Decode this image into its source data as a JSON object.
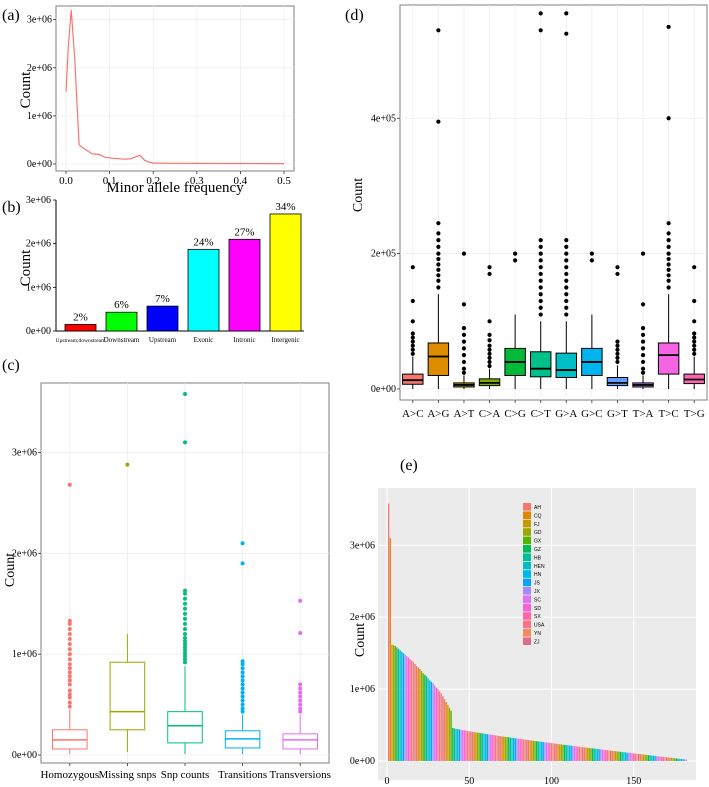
{
  "panel_labels": {
    "a": "(a)",
    "b": "(b)",
    "c": "(c)",
    "d": "(d)",
    "e": "(e)"
  },
  "chart_data": [
    {
      "id": "a",
      "type": "line",
      "xlabel": "Minor allele frequency",
      "ylabel": "Count",
      "xlim": [
        0,
        0.5
      ],
      "ylim": [
        0,
        3200000
      ],
      "xticks": [
        "0.0",
        "0.1",
        "0.2",
        "0.3",
        "0.4",
        "0.5"
      ],
      "yticks": [
        "0e+00",
        "1e+06",
        "2e+06",
        "3e+06"
      ],
      "x": [
        0.0,
        0.005,
        0.012,
        0.02,
        0.03,
        0.045,
        0.06,
        0.075,
        0.09,
        0.105,
        0.12,
        0.135,
        0.15,
        0.16,
        0.17,
        0.18,
        0.19,
        0.2,
        0.25,
        0.3,
        0.35,
        0.4,
        0.45,
        0.5
      ],
      "values": [
        1500000,
        2400000,
        3200000,
        2200000,
        400000,
        300000,
        210000,
        200000,
        140000,
        120000,
        110000,
        100000,
        110000,
        150000,
        180000,
        80000,
        40000,
        20000,
        15000,
        12000,
        10000,
        10000,
        8000,
        8000
      ],
      "color": "#f8766d"
    },
    {
      "id": "b",
      "type": "bar",
      "ylabel": "Count",
      "ylim": [
        0,
        3000000
      ],
      "yticks": [
        "0e+00",
        "1e+06",
        "2e+06",
        "3e+06"
      ],
      "categories": [
        "Upstream;downstream",
        "Downstream",
        "Upstream",
        "Exonic",
        "Intronic",
        "Intergenic"
      ],
      "values": [
        150000,
        430000,
        570000,
        1870000,
        2100000,
        2680000
      ],
      "labels": [
        "2%",
        "6%",
        "7%",
        "24%",
        "27%",
        "34%"
      ],
      "colors": [
        "#ff0000",
        "#00ff00",
        "#0000ff",
        "#00ffff",
        "#ff00ff",
        "#ffff00"
      ]
    },
    {
      "id": "c",
      "type": "box",
      "ylabel": "Count",
      "ylim": [
        0,
        3600000
      ],
      "yticks": [
        "0e+00",
        "1e+06",
        "2e+06",
        "3e+06"
      ],
      "categories": [
        "Homozygous",
        "Missing snps",
        "Snp counts",
        "Transitions",
        "Transversions"
      ],
      "colors": [
        "#f8766d",
        "#a3a500",
        "#00bf7d",
        "#00b0f6",
        "#e76bf3"
      ],
      "boxes": [
        {
          "min": 10000,
          "q1": 60000,
          "median": 150000,
          "q3": 250000,
          "max": 450000,
          "outliers": [
            480000,
            520000,
            570000,
            600000,
            640000,
            700000,
            740000,
            780000,
            820000,
            860000,
            900000,
            950000,
            1000000,
            1050000,
            1100000,
            1150000,
            1200000,
            1250000,
            1300000,
            1330000,
            2680000
          ]
        },
        {
          "min": 30000,
          "q1": 250000,
          "median": 430000,
          "q3": 920000,
          "max": 1200000,
          "outliers": [
            2880000
          ]
        },
        {
          "min": 10000,
          "q1": 120000,
          "median": 290000,
          "q3": 430000,
          "max": 880000,
          "outliers": [
            920000,
            950000,
            980000,
            1010000,
            1040000,
            1070000,
            1100000,
            1130000,
            1160000,
            1200000,
            1250000,
            1300000,
            1350000,
            1400000,
            1450000,
            1500000,
            1550000,
            1600000,
            1630000,
            3100000,
            3580000
          ]
        },
        {
          "min": 10000,
          "q1": 70000,
          "median": 160000,
          "q3": 240000,
          "max": 400000,
          "outliers": [
            430000,
            460000,
            500000,
            540000,
            580000,
            620000,
            660000,
            700000,
            740000,
            780000,
            820000,
            860000,
            900000,
            930000,
            1900000,
            2100000
          ]
        },
        {
          "min": 10000,
          "q1": 60000,
          "median": 150000,
          "q3": 210000,
          "max": 400000,
          "outliers": [
            430000,
            460000,
            500000,
            540000,
            580000,
            620000,
            660000,
            700000,
            1210000,
            1530000
          ]
        }
      ]
    },
    {
      "id": "d",
      "type": "box",
      "ylabel": "Count",
      "ylim": [
        0,
        560000
      ],
      "yticks": [
        "0e+00",
        "2e+05",
        "4e+05"
      ],
      "categories": [
        "A>C",
        "A>G",
        "A>T",
        "C>A",
        "C>G",
        "C>T",
        "G>A",
        "G>C",
        "G>T",
        "T>A",
        "T>C",
        "T>G"
      ],
      "colors": [
        "#f8766d",
        "#de8c00",
        "#b79f00",
        "#7cae00",
        "#00ba38",
        "#00c08b",
        "#00bfc4",
        "#00b4f0",
        "#619cff",
        "#c77cff",
        "#f564e3",
        "#ff64b0"
      ],
      "boxes": [
        {
          "min": 0,
          "q1": 7000,
          "median": 13000,
          "q3": 22000,
          "max": 48000,
          "outliers": [
            52000,
            58000,
            64000,
            70000,
            76000,
            82000,
            100000,
            130000,
            180000
          ]
        },
        {
          "min": 0,
          "q1": 20000,
          "median": 48000,
          "q3": 68000,
          "max": 140000,
          "outliers": [
            150000,
            160000,
            168000,
            176000,
            184000,
            192000,
            200000,
            210000,
            220000,
            230000,
            245000,
            395000,
            530000
          ]
        },
        {
          "min": 0,
          "q1": 3000,
          "median": 6000,
          "q3": 9000,
          "max": 20000,
          "outliers": [
            24000,
            30000,
            40000,
            50000,
            60000,
            70000,
            80000,
            90000,
            125000,
            200000
          ]
        },
        {
          "min": 0,
          "q1": 5000,
          "median": 9000,
          "q3": 15000,
          "max": 30000,
          "outliers": [
            34000,
            40000,
            46000,
            52000,
            58000,
            64000,
            72000,
            80000,
            100000,
            170000,
            180000
          ]
        },
        {
          "min": 0,
          "q1": 20000,
          "median": 40000,
          "q3": 60000,
          "max": 110000,
          "outliers": [
            190000,
            200000
          ]
        },
        {
          "min": 0,
          "q1": 18000,
          "median": 30000,
          "q3": 55000,
          "max": 100000,
          "outliers": [
            110000,
            120000,
            130000,
            140000,
            150000,
            160000,
            170000,
            180000,
            190000,
            200000,
            210000,
            220000,
            530000,
            555000
          ]
        },
        {
          "min": 0,
          "q1": 17000,
          "median": 28000,
          "q3": 53000,
          "max": 100000,
          "outliers": [
            110000,
            120000,
            130000,
            140000,
            150000,
            160000,
            170000,
            180000,
            190000,
            200000,
            210000,
            220000,
            525000,
            555000
          ]
        },
        {
          "min": 0,
          "q1": 20000,
          "median": 40000,
          "q3": 60000,
          "max": 110000,
          "outliers": [
            190000,
            200000
          ]
        },
        {
          "min": 0,
          "q1": 5000,
          "median": 9000,
          "q3": 17000,
          "max": 35000,
          "outliers": [
            40000,
            46000,
            52000,
            58000,
            64000,
            70000,
            170000,
            180000
          ]
        },
        {
          "min": 0,
          "q1": 3000,
          "median": 6000,
          "q3": 9000,
          "max": 20000,
          "outliers": [
            24000,
            30000,
            40000,
            50000,
            60000,
            70000,
            80000,
            90000,
            125000,
            200000
          ]
        },
        {
          "min": 0,
          "q1": 22000,
          "median": 50000,
          "q3": 68000,
          "max": 140000,
          "outliers": [
            150000,
            160000,
            168000,
            176000,
            184000,
            192000,
            200000,
            210000,
            220000,
            230000,
            245000,
            400000,
            535000
          ]
        },
        {
          "min": 0,
          "q1": 8000,
          "median": 14000,
          "q3": 22000,
          "max": 48000,
          "outliers": [
            52000,
            58000,
            64000,
            70000,
            76000,
            82000,
            100000,
            130000,
            180000
          ]
        }
      ]
    },
    {
      "id": "e",
      "type": "bar",
      "ylabel": "Count",
      "xlim": [
        0,
        183
      ],
      "ylim": [
        0,
        3700000
      ],
      "xticks": [
        "0",
        "50",
        "100",
        "150"
      ],
      "yticks": [
        "0e+00",
        "1e+06",
        "2e+06",
        "3e+06"
      ],
      "n_bars": 182,
      "series_values_note": "decreasing counts",
      "head_values": [
        3580000,
        3100000,
        1620000,
        1610000,
        1600000,
        1580000,
        1560000,
        1540000,
        1520000,
        1500000,
        1480000,
        1460000,
        1440000,
        1420000,
        1400000,
        1380000,
        1350000,
        1320000,
        1300000,
        1280000,
        1250000,
        1220000,
        1200000,
        1180000,
        1150000,
        1120000,
        1100000,
        1080000,
        1050000,
        1020000,
        1000000,
        970000,
        940000,
        900000,
        860000,
        820000,
        780000,
        740000,
        700000
      ],
      "tail_start": 460000,
      "tail_end": 20000,
      "legend": [
        "AH",
        "CQ",
        "FJ",
        "GD",
        "GX",
        "GZ",
        "HB",
        "HEN",
        "HN",
        "JS",
        "JX",
        "SC",
        "SD",
        "SX",
        "USA",
        "YN",
        "ZJ"
      ],
      "legend_colors": [
        "#f8766d",
        "#e38900",
        "#c49a00",
        "#99a800",
        "#53b400",
        "#00bc56",
        "#00c094",
        "#00bfc4",
        "#00b6eb",
        "#06a4ff",
        "#a58aff",
        "#df70f8",
        "#fb61d7",
        "#ff66a8",
        "#ff7086",
        "#f58b5c",
        "#e06b8a"
      ]
    }
  ]
}
